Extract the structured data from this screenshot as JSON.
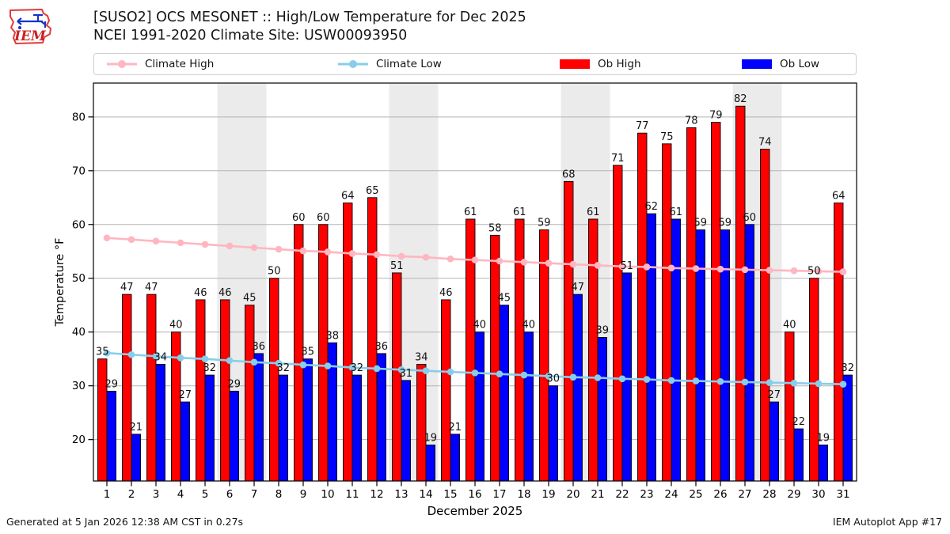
{
  "header": {
    "title_line1": "[SUSO2] OCS MESONET :: High/Low Temperature for Dec 2025",
    "title_line2": "NCEI 1991-2020 Climate Site: USW00093950",
    "logo_text": "IEM"
  },
  "legend": {
    "items": [
      {
        "label": "Climate High",
        "type": "line",
        "color": "#ffb6c1"
      },
      {
        "label": "Climate Low",
        "type": "line",
        "color": "#87ceeb"
      },
      {
        "label": "Ob High",
        "type": "patch",
        "color": "#ff0000"
      },
      {
        "label": "Ob Low",
        "type": "patch",
        "color": "#0000ff"
      }
    ],
    "item_offsets": [
      15,
      307,
      587,
      817
    ]
  },
  "chart_data": {
    "type": "bar",
    "x": [
      1,
      2,
      3,
      4,
      5,
      6,
      7,
      8,
      9,
      10,
      11,
      12,
      13,
      14,
      15,
      16,
      17,
      18,
      19,
      20,
      21,
      22,
      23,
      24,
      25,
      26,
      27,
      28,
      29,
      30,
      31
    ],
    "series": [
      {
        "name": "Ob High",
        "type": "bar",
        "color": "#ff0000",
        "values": [
          35,
          47,
          47,
          40,
          46,
          46,
          45,
          50,
          60,
          60,
          64,
          65,
          51,
          34,
          46,
          61,
          58,
          61,
          59,
          68,
          61,
          71,
          77,
          75,
          78,
          79,
          82,
          74,
          40,
          50,
          64
        ]
      },
      {
        "name": "Ob Low",
        "type": "bar",
        "color": "#0000ff",
        "values": [
          29,
          21,
          34,
          27,
          32,
          29,
          36,
          32,
          35,
          38,
          32,
          36,
          31,
          19,
          21,
          40,
          45,
          40,
          30,
          47,
          39,
          51,
          62,
          61,
          59,
          59,
          60,
          27,
          22,
          19,
          32
        ]
      },
      {
        "name": "Climate High",
        "type": "line",
        "color": "#ffb6c1",
        "values": [
          57.5,
          57.2,
          56.9,
          56.6,
          56.3,
          56.0,
          55.7,
          55.4,
          55.1,
          54.9,
          54.6,
          54.4,
          54.1,
          53.9,
          53.6,
          53.4,
          53.2,
          53.0,
          52.8,
          52.6,
          52.4,
          52.2,
          52.1,
          51.9,
          51.8,
          51.7,
          51.6,
          51.5,
          51.4,
          51.3,
          51.2
        ]
      },
      {
        "name": "Climate Low",
        "type": "line",
        "color": "#87ceeb",
        "values": [
          36.1,
          35.8,
          35.5,
          35.2,
          35.0,
          34.7,
          34.4,
          34.2,
          33.9,
          33.7,
          33.4,
          33.2,
          33.0,
          32.8,
          32.6,
          32.4,
          32.2,
          32.0,
          31.8,
          31.6,
          31.5,
          31.3,
          31.2,
          31.0,
          30.9,
          30.8,
          30.7,
          30.6,
          30.5,
          30.4,
          30.3
        ]
      }
    ],
    "xlabel": "December 2025",
    "ylabel": "Temperature °F",
    "yticks": [
      20,
      30,
      40,
      50,
      60,
      70,
      80
    ],
    "ylim": [
      12.3,
      86.3
    ],
    "weekend_saturdays": [
      6,
      13,
      20,
      27
    ],
    "grid": true,
    "legend_position": "top",
    "weekend_band_color": "#ebebeb",
    "grid_color": "#b3b3b3",
    "label_color": "#111111"
  },
  "footer": {
    "generated": "Generated at 5 Jan 2026 12:38 AM CST in 0.27s",
    "app": "IEM Autoplot App #17"
  }
}
